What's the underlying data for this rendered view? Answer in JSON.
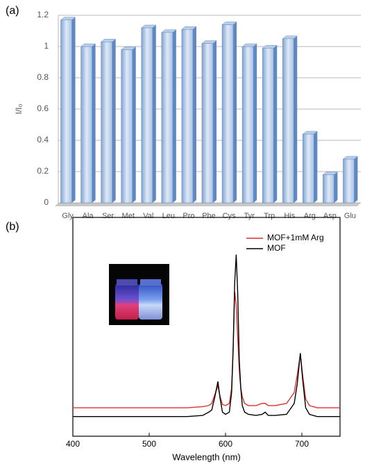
{
  "chart_data": [
    {
      "type": "bar",
      "label": "(a)",
      "ylabel": "I/I₀",
      "categories": [
        "Gly",
        "Ala",
        "Ser",
        "Met",
        "Val",
        "Leu",
        "Pro",
        "Phe",
        "Cys",
        "Tyr",
        "Trp",
        "His",
        "Arg",
        "Asp",
        "Glu"
      ],
      "values": [
        1.17,
        1.0,
        1.03,
        0.98,
        1.12,
        1.09,
        1.11,
        1.02,
        1.14,
        1.0,
        0.99,
        1.05,
        0.44,
        0.18,
        0.28
      ],
      "color": "#9dbbe0",
      "ylim": [
        0,
        1.2
      ],
      "yticks": [
        0,
        0.2,
        0.4,
        0.6,
        0.8,
        1,
        1.2
      ],
      "grid": true
    },
    {
      "type": "line",
      "label": "(b)",
      "xlabel": "Wavelength (nm)",
      "x": [
        400,
        450,
        500,
        550,
        570,
        578,
        582,
        586,
        590,
        593,
        596,
        600,
        605,
        608,
        610,
        612,
        614,
        616,
        618,
        620,
        622,
        625,
        630,
        640,
        648,
        652,
        656,
        665,
        680,
        690,
        694,
        698,
        701,
        705,
        710,
        720,
        750
      ],
      "series": [
        {
          "name": "MOF+1mM Arg",
          "color": "#e03030",
          "values": [
            13,
            13,
            13,
            13,
            13.5,
            14,
            15,
            19,
            23,
            18,
            14.5,
            14,
            15,
            22,
            40,
            66,
            60,
            45,
            30,
            22,
            18,
            15,
            14,
            14,
            15,
            15,
            14,
            14,
            15,
            20,
            28,
            37.5,
            28,
            17,
            14,
            13,
            13
          ]
        },
        {
          "name": "MOF",
          "color": "#000000",
          "values": [
            9,
            9,
            9,
            9,
            9.5,
            11,
            12,
            18,
            25,
            17,
            11,
            10,
            11,
            20,
            40,
            70,
            83,
            65,
            35,
            22,
            14,
            11,
            10,
            9.5,
            10,
            11,
            9.5,
            9.5,
            10,
            15,
            24,
            38,
            26,
            13,
            10,
            9,
            9
          ]
        }
      ],
      "xlim": [
        400,
        750
      ],
      "xticks": [
        400,
        500,
        600,
        700
      ],
      "ylim": [
        0,
        100
      ],
      "legend": "upper right"
    }
  ]
}
